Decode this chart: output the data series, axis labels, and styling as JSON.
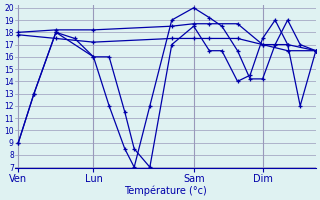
{
  "background_color": "#dff2f2",
  "grid_color": "#9999bb",
  "line_color": "#0000aa",
  "tick_label_color": "#0000aa",
  "xlabel": "Température (°c)",
  "xlabel_color": "#0000aa",
  "ylim": [
    7,
    20
  ],
  "yticks": [
    7,
    8,
    9,
    10,
    11,
    12,
    13,
    14,
    15,
    16,
    17,
    18,
    19,
    20
  ],
  "xtick_labels": [
    "Ven",
    "Lun",
    "Sam",
    "Dim"
  ],
  "xtick_positions": [
    1,
    25,
    57,
    79
  ],
  "xlim": [
    0,
    96
  ],
  "series": [
    {
      "x": [
        1,
        6,
        13,
        19,
        25,
        30,
        35,
        38,
        43,
        50,
        57,
        62,
        66,
        71,
        75,
        79,
        83,
        87,
        91,
        96
      ],
      "y": [
        9,
        13,
        18,
        17.5,
        16,
        12,
        8.5,
        7,
        12,
        19,
        20,
        19.2,
        18.5,
        16.5,
        14.2,
        14.2,
        17,
        19,
        17,
        16.5
      ]
    },
    {
      "x": [
        1,
        6,
        13,
        25,
        30,
        35,
        38,
        43,
        50,
        57,
        62,
        66,
        71,
        75,
        79,
        83,
        87,
        91,
        96
      ],
      "y": [
        9,
        13,
        18,
        16,
        16,
        11.5,
        8.5,
        7,
        17,
        18.5,
        16.5,
        16.5,
        14,
        14.5,
        17.5,
        19,
        17,
        12,
        16.5
      ]
    },
    {
      "x": [
        1,
        13,
        25,
        50,
        57,
        62,
        71,
        79,
        87,
        96
      ],
      "y": [
        18,
        18.2,
        18.2,
        18.5,
        18.7,
        18.7,
        18.7,
        17,
        17,
        16.5
      ]
    },
    {
      "x": [
        1,
        13,
        25,
        50,
        57,
        62,
        71,
        79,
        87,
        96
      ],
      "y": [
        17.8,
        17.5,
        17.2,
        17.5,
        17.5,
        17.5,
        17.5,
        17,
        16.5,
        16.5
      ]
    }
  ],
  "vlines_x": [
    1,
    25,
    57,
    79
  ],
  "figsize": [
    3.2,
    2.0
  ],
  "dpi": 100
}
